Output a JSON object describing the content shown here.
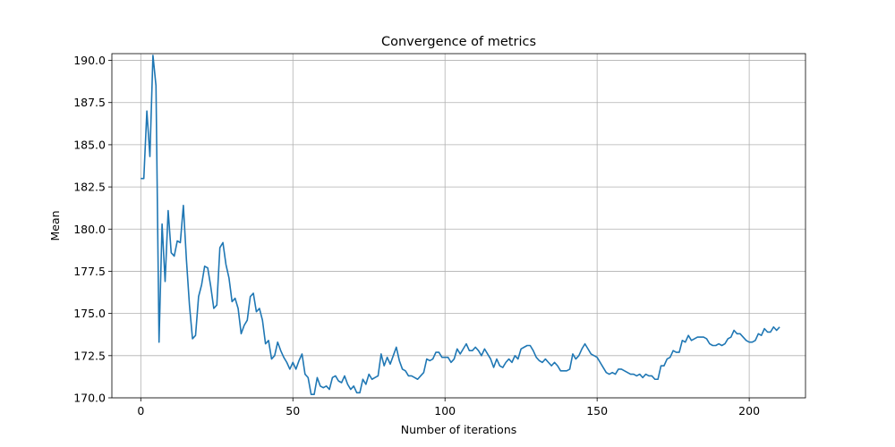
{
  "chart_data": {
    "type": "line",
    "title": "Convergence of metrics",
    "xlabel": "Number of iterations",
    "ylabel": "Mean",
    "xlim": [
      -9.5,
      218.5
    ],
    "ylim": [
      170.0,
      190.4
    ],
    "xticks": [
      0,
      50,
      100,
      150,
      200
    ],
    "yticks": [
      170.0,
      172.5,
      175.0,
      177.5,
      180.0,
      182.5,
      185.0,
      187.5,
      190.0
    ],
    "xtick_labels": [
      "0",
      "50",
      "100",
      "150",
      "200"
    ],
    "ytick_labels": [
      "170.0",
      "172.5",
      "175.0",
      "177.5",
      "180.0",
      "182.5",
      "185.0",
      "187.5",
      "190.0"
    ],
    "grid": true,
    "series": [
      {
        "color": "#1f77b4",
        "values": [
          183.0,
          183.0,
          187.0,
          184.3,
          190.3,
          188.5,
          173.3,
          180.3,
          176.9,
          181.1,
          178.6,
          178.4,
          179.3,
          179.2,
          181.4,
          178.2,
          175.5,
          173.5,
          173.7,
          176.0,
          176.7,
          177.8,
          177.7,
          176.6,
          175.3,
          175.5,
          178.9,
          179.2,
          177.9,
          177.1,
          175.7,
          175.9,
          175.3,
          173.8,
          174.3,
          174.6,
          176.0,
          176.2,
          175.1,
          175.3,
          174.6,
          173.2,
          173.4,
          172.3,
          172.5,
          173.3,
          172.8,
          172.4,
          172.1,
          171.7,
          172.1,
          171.7,
          172.2,
          172.6,
          171.4,
          171.2,
          170.2,
          170.2,
          171.2,
          170.7,
          170.6,
          170.7,
          170.5,
          171.2,
          171.3,
          171.0,
          170.9,
          171.3,
          170.8,
          170.5,
          170.7,
          170.3,
          170.3,
          171.1,
          170.8,
          171.4,
          171.1,
          171.2,
          171.3,
          172.6,
          171.9,
          172.4,
          172.0,
          172.5,
          173.0,
          172.2,
          171.7,
          171.6,
          171.3,
          171.3,
          171.2,
          171.1,
          171.3,
          171.5,
          172.3,
          172.2,
          172.3,
          172.7,
          172.7,
          172.4,
          172.4,
          172.4,
          172.1,
          172.3,
          172.9,
          172.6,
          172.9,
          173.2,
          172.8,
          172.8,
          173.0,
          172.8,
          172.5,
          172.9,
          172.6,
          172.3,
          171.8,
          172.3,
          171.9,
          171.8,
          172.1,
          172.3,
          172.1,
          172.5,
          172.3,
          172.9,
          173.0,
          173.1,
          173.1,
          172.8,
          172.4,
          172.2,
          172.1,
          172.3,
          172.1,
          171.9,
          172.1,
          171.9,
          171.6,
          171.6,
          171.6,
          171.7,
          172.6,
          172.3,
          172.5,
          172.9,
          173.2,
          172.9,
          172.6,
          172.5,
          172.4,
          172.1,
          171.8,
          171.5,
          171.4,
          171.5,
          171.4,
          171.7,
          171.7,
          171.6,
          171.5,
          171.4,
          171.4,
          171.3,
          171.4,
          171.2,
          171.4,
          171.3,
          171.3,
          171.1,
          171.1,
          171.9,
          171.9,
          172.3,
          172.4,
          172.8,
          172.7,
          172.7,
          173.4,
          173.3,
          173.7,
          173.4,
          173.5,
          173.6,
          173.6,
          173.6,
          173.5,
          173.2,
          173.1,
          173.1,
          173.2,
          173.1,
          173.2,
          173.5,
          173.6,
          174.0,
          173.8,
          173.8,
          173.6,
          173.4,
          173.3,
          173.3,
          173.4,
          173.8,
          173.7,
          174.1,
          173.9,
          173.9,
          174.2,
          174.0,
          174.2
        ]
      }
    ]
  }
}
